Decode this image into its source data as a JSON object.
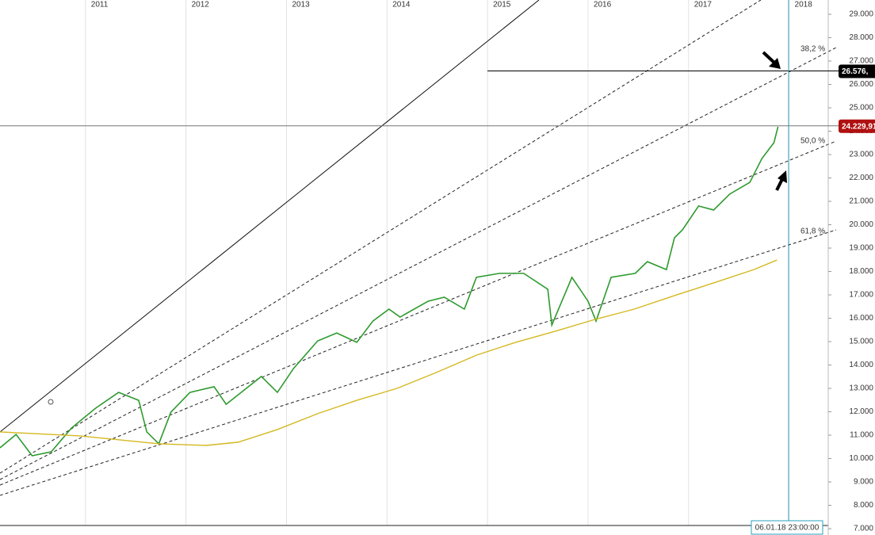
{
  "chart_data": {
    "type": "line",
    "xlim": [
      2010.15,
      2018.39
    ],
    "xticks": [
      2011,
      2012,
      2013,
      2014,
      2015,
      2016,
      2017,
      2018
    ],
    "ylim": [
      6730,
      29610
    ],
    "yticks": [
      {
        "value": 7000,
        "label": "7.000"
      },
      {
        "value": 8000,
        "label": "8.000"
      },
      {
        "value": 9000,
        "label": "9.000"
      },
      {
        "value": 10000,
        "label": "10.000"
      },
      {
        "value": 11000,
        "label": "11.000"
      },
      {
        "value": 12000,
        "label": "12.000"
      },
      {
        "value": 13000,
        "label": "13.000"
      },
      {
        "value": 14000,
        "label": "14.000"
      },
      {
        "value": 15000,
        "label": "15.000"
      },
      {
        "value": 16000,
        "label": "16.000"
      },
      {
        "value": 17000,
        "label": "17.000"
      },
      {
        "value": 18000,
        "label": "18.000"
      },
      {
        "value": 19000,
        "label": "19.000"
      },
      {
        "value": 20000,
        "label": "20.000"
      },
      {
        "value": 21000,
        "label": "21.000"
      },
      {
        "value": 22000,
        "label": "22.000"
      },
      {
        "value": 23000,
        "label": "23.000"
      },
      {
        "value": 24000,
        "label": "24.000"
      },
      {
        "value": 25000,
        "label": "25.000"
      },
      {
        "value": 26000,
        "label": "26.000"
      },
      {
        "value": 27000,
        "label": "27.000"
      },
      {
        "value": 28000,
        "label": "28.000"
      },
      {
        "value": 29000,
        "label": "29.000"
      }
    ],
    "grid": true,
    "series": [
      {
        "color": "#2e9a2e",
        "x": [
          2010.15,
          2010.31,
          2010.47,
          2010.66,
          2010.86,
          2011.1,
          2011.33,
          2011.53,
          2011.61,
          2011.73,
          2011.85,
          2012.04,
          2012.28,
          2012.4,
          2012.6,
          2012.75,
          2012.91,
          2013.07,
          2013.31,
          2013.5,
          2013.7,
          2013.86,
          2014.02,
          2014.13,
          2014.41,
          2014.57,
          2014.77,
          2014.89,
          2015.12,
          2015.36,
          2015.6,
          2015.64,
          2015.84,
          2016.0,
          2016.08,
          2016.23,
          2016.47,
          2016.59,
          2016.78,
          2016.86,
          2016.94,
          2017.1,
          2017.25,
          2017.41,
          2017.61,
          2017.73,
          2017.85,
          2017.89
        ],
        "values": [
          10460,
          11030,
          10120,
          10290,
          11300,
          12150,
          12830,
          12490,
          11140,
          10630,
          11980,
          12830,
          13070,
          12320,
          13000,
          13510,
          12830,
          13850,
          15030,
          15370,
          14970,
          15880,
          16390,
          16050,
          16730,
          16900,
          16390,
          17750,
          17920,
          17920,
          17240,
          15710,
          17750,
          16730,
          15880,
          17750,
          17920,
          18420,
          18080,
          19440,
          19780,
          20800,
          20630,
          21310,
          21810,
          22830,
          23510,
          24190
        ]
      },
      {
        "color": "#d4b820",
        "x": [
          2010.15,
          2010.94,
          2011.73,
          2012.2,
          2012.52,
          2012.91,
          2013.31,
          2013.7,
          2014.1,
          2014.49,
          2014.89,
          2015.28,
          2015.67,
          2016.07,
          2016.46,
          2016.86,
          2017.25,
          2017.65,
          2017.88
        ],
        "values": [
          11140,
          10970,
          10630,
          10560,
          10700,
          11240,
          11920,
          12490,
          13000,
          13680,
          14420,
          14970,
          15440,
          15950,
          16390,
          16970,
          17510,
          18080,
          18490
        ]
      }
    ],
    "price_labels": [
      {
        "value": 26576,
        "label": "26.576,",
        "color": "#000000"
      },
      {
        "value": 24229.91,
        "label": "24.229,91",
        "color": "#b01010"
      }
    ],
    "annotations": [
      "38,2 %",
      "50,0 %",
      "61,8 %"
    ],
    "cursor_label": "06.01.18 23:00:00"
  }
}
